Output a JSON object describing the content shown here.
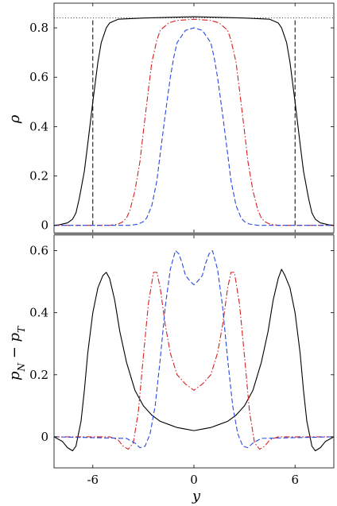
{
  "chart_data": [
    {
      "type": "line",
      "ylabel": "ρ",
      "xlim": [
        -8.3,
        8.3
      ],
      "ylim": [
        -0.03,
        0.9
      ],
      "yticks": [
        0,
        0.2,
        0.4,
        0.6,
        0.8
      ],
      "ytick_labels": [
        "0",
        "0.2",
        "0.4",
        "0.6",
        "0.8"
      ],
      "reference_lines": {
        "horizontal_dotted_y": 0.84,
        "vertical_dashed_x": [
          -6,
          6
        ]
      },
      "series": [
        {
          "style": "solid",
          "color": "#000000",
          "x": [
            -8.3,
            -8,
            -7.5,
            -7.2,
            -7,
            -6.8,
            -6.5,
            -6.3,
            -6,
            -5.7,
            -5.5,
            -5.2,
            -5,
            -4.5,
            -3,
            0,
            3,
            4.5,
            5,
            5.2,
            5.5,
            5.7,
            6,
            6.3,
            6.5,
            6.8,
            7,
            7.2,
            7.5,
            8,
            8.3
          ],
          "y": [
            0.0,
            0.002,
            0.01,
            0.025,
            0.05,
            0.11,
            0.22,
            0.33,
            0.5,
            0.66,
            0.74,
            0.8,
            0.82,
            0.835,
            0.84,
            0.845,
            0.84,
            0.835,
            0.82,
            0.8,
            0.74,
            0.66,
            0.5,
            0.33,
            0.22,
            0.11,
            0.05,
            0.025,
            0.01,
            0.002,
            0.0
          ]
        },
        {
          "style": "dashdot",
          "color": "#d62020",
          "x": [
            -8.3,
            -5,
            -4.5,
            -4.2,
            -4,
            -3.8,
            -3.5,
            -3.2,
            -3,
            -2.7,
            -2.5,
            -2.2,
            -2,
            -1.5,
            -1,
            0,
            1,
            1.5,
            2,
            2.2,
            2.5,
            2.7,
            3,
            3.2,
            3.5,
            3.8,
            4,
            4.2,
            4.5,
            5,
            8.3
          ],
          "y": [
            0.0,
            0.0,
            0.005,
            0.015,
            0.03,
            0.06,
            0.14,
            0.26,
            0.38,
            0.55,
            0.66,
            0.75,
            0.79,
            0.82,
            0.83,
            0.835,
            0.83,
            0.82,
            0.79,
            0.75,
            0.66,
            0.55,
            0.38,
            0.26,
            0.14,
            0.06,
            0.03,
            0.015,
            0.005,
            0.0,
            0.0
          ]
        },
        {
          "style": "dashed",
          "color": "#2a48e0",
          "x": [
            -8.3,
            -3.8,
            -3.3,
            -3,
            -2.8,
            -2.5,
            -2.2,
            -2,
            -1.7,
            -1.4,
            -1.2,
            -1,
            -0.5,
            0,
            0.5,
            1,
            1.2,
            1.4,
            1.7,
            2,
            2.2,
            2.5,
            2.8,
            3,
            3.3,
            3.8,
            8.3
          ],
          "y": [
            0.0,
            0.0,
            0.005,
            0.015,
            0.03,
            0.08,
            0.18,
            0.29,
            0.45,
            0.6,
            0.68,
            0.74,
            0.79,
            0.8,
            0.79,
            0.74,
            0.68,
            0.6,
            0.45,
            0.29,
            0.18,
            0.08,
            0.03,
            0.015,
            0.005,
            0.0,
            0.0
          ]
        }
      ]
    },
    {
      "type": "line",
      "xlabel": "y",
      "ylabel": "pN − pT",
      "xlim": [
        -8.3,
        8.3
      ],
      "ylim": [
        -0.1,
        0.65
      ],
      "xticks": [
        -6,
        0,
        6
      ],
      "xtick_labels": [
        "-6",
        "0",
        "6"
      ],
      "yticks": [
        0,
        0.2,
        0.4,
        0.6
      ],
      "ytick_labels": [
        "0",
        "0.2",
        "0.4",
        "0.6"
      ],
      "series": [
        {
          "style": "solid",
          "color": "#000000",
          "x": [
            -8.3,
            -7.8,
            -7.5,
            -7.2,
            -7,
            -6.7,
            -6.5,
            -6.3,
            -6,
            -5.7,
            -5.4,
            -5.2,
            -5,
            -4.7,
            -4.4,
            -4,
            -3.5,
            -3,
            -2.5,
            -2,
            -1.5,
            -1,
            -0.5,
            0,
            0.5,
            1,
            1.5,
            2,
            2.5,
            3,
            3.5,
            4,
            4.4,
            4.7,
            5,
            5.2,
            5.4,
            5.7,
            6,
            6.3,
            6.5,
            6.7,
            7,
            7.2,
            7.5,
            7.8,
            8.3
          ],
          "y": [
            0.0,
            -0.015,
            -0.035,
            -0.045,
            -0.03,
            0.05,
            0.15,
            0.27,
            0.4,
            0.48,
            0.52,
            0.53,
            0.51,
            0.44,
            0.34,
            0.24,
            0.15,
            0.1,
            0.07,
            0.05,
            0.04,
            0.03,
            0.025,
            0.02,
            0.025,
            0.03,
            0.04,
            0.05,
            0.07,
            0.1,
            0.15,
            0.24,
            0.34,
            0.44,
            0.51,
            0.54,
            0.52,
            0.48,
            0.4,
            0.27,
            0.15,
            0.05,
            -0.03,
            -0.045,
            -0.035,
            -0.015,
            0.0
          ]
        },
        {
          "style": "dashdot",
          "color": "#d62020",
          "x": [
            -8.3,
            -5,
            -4.5,
            -4.2,
            -3.9,
            -3.6,
            -3.3,
            -3,
            -2.7,
            -2.4,
            -2.2,
            -2,
            -1.7,
            -1.4,
            -1,
            -0.5,
            0,
            0.5,
            1,
            1.4,
            1.7,
            2,
            2.2,
            2.4,
            2.7,
            3,
            3.3,
            3.6,
            3.9,
            4.2,
            4.5,
            5,
            8.3
          ],
          "y": [
            0.0,
            0.0,
            -0.01,
            -0.03,
            -0.04,
            -0.02,
            0.08,
            0.26,
            0.43,
            0.53,
            0.53,
            0.48,
            0.36,
            0.27,
            0.2,
            0.17,
            0.15,
            0.17,
            0.2,
            0.27,
            0.36,
            0.48,
            0.53,
            0.53,
            0.43,
            0.26,
            0.08,
            -0.02,
            -0.04,
            -0.03,
            -0.01,
            0.0,
            0.0
          ]
        },
        {
          "style": "dashed",
          "color": "#2a48e0",
          "x": [
            -8.3,
            -4,
            -3.5,
            -3.2,
            -2.9,
            -2.6,
            -2.3,
            -2,
            -1.7,
            -1.4,
            -1.1,
            -0.9,
            -0.7,
            -0.5,
            -0.2,
            0,
            0.2,
            0.5,
            0.7,
            0.9,
            1.1,
            1.4,
            1.7,
            2,
            2.3,
            2.6,
            2.9,
            3.2,
            3.5,
            4,
            8.3
          ],
          "y": [
            0.0,
            -0.005,
            -0.02,
            -0.035,
            -0.03,
            0.01,
            0.1,
            0.25,
            0.42,
            0.54,
            0.6,
            0.59,
            0.56,
            0.52,
            0.5,
            0.49,
            0.5,
            0.52,
            0.56,
            0.59,
            0.6,
            0.54,
            0.42,
            0.25,
            0.1,
            0.01,
            -0.03,
            -0.035,
            -0.02,
            -0.005,
            0.0
          ]
        }
      ]
    }
  ]
}
